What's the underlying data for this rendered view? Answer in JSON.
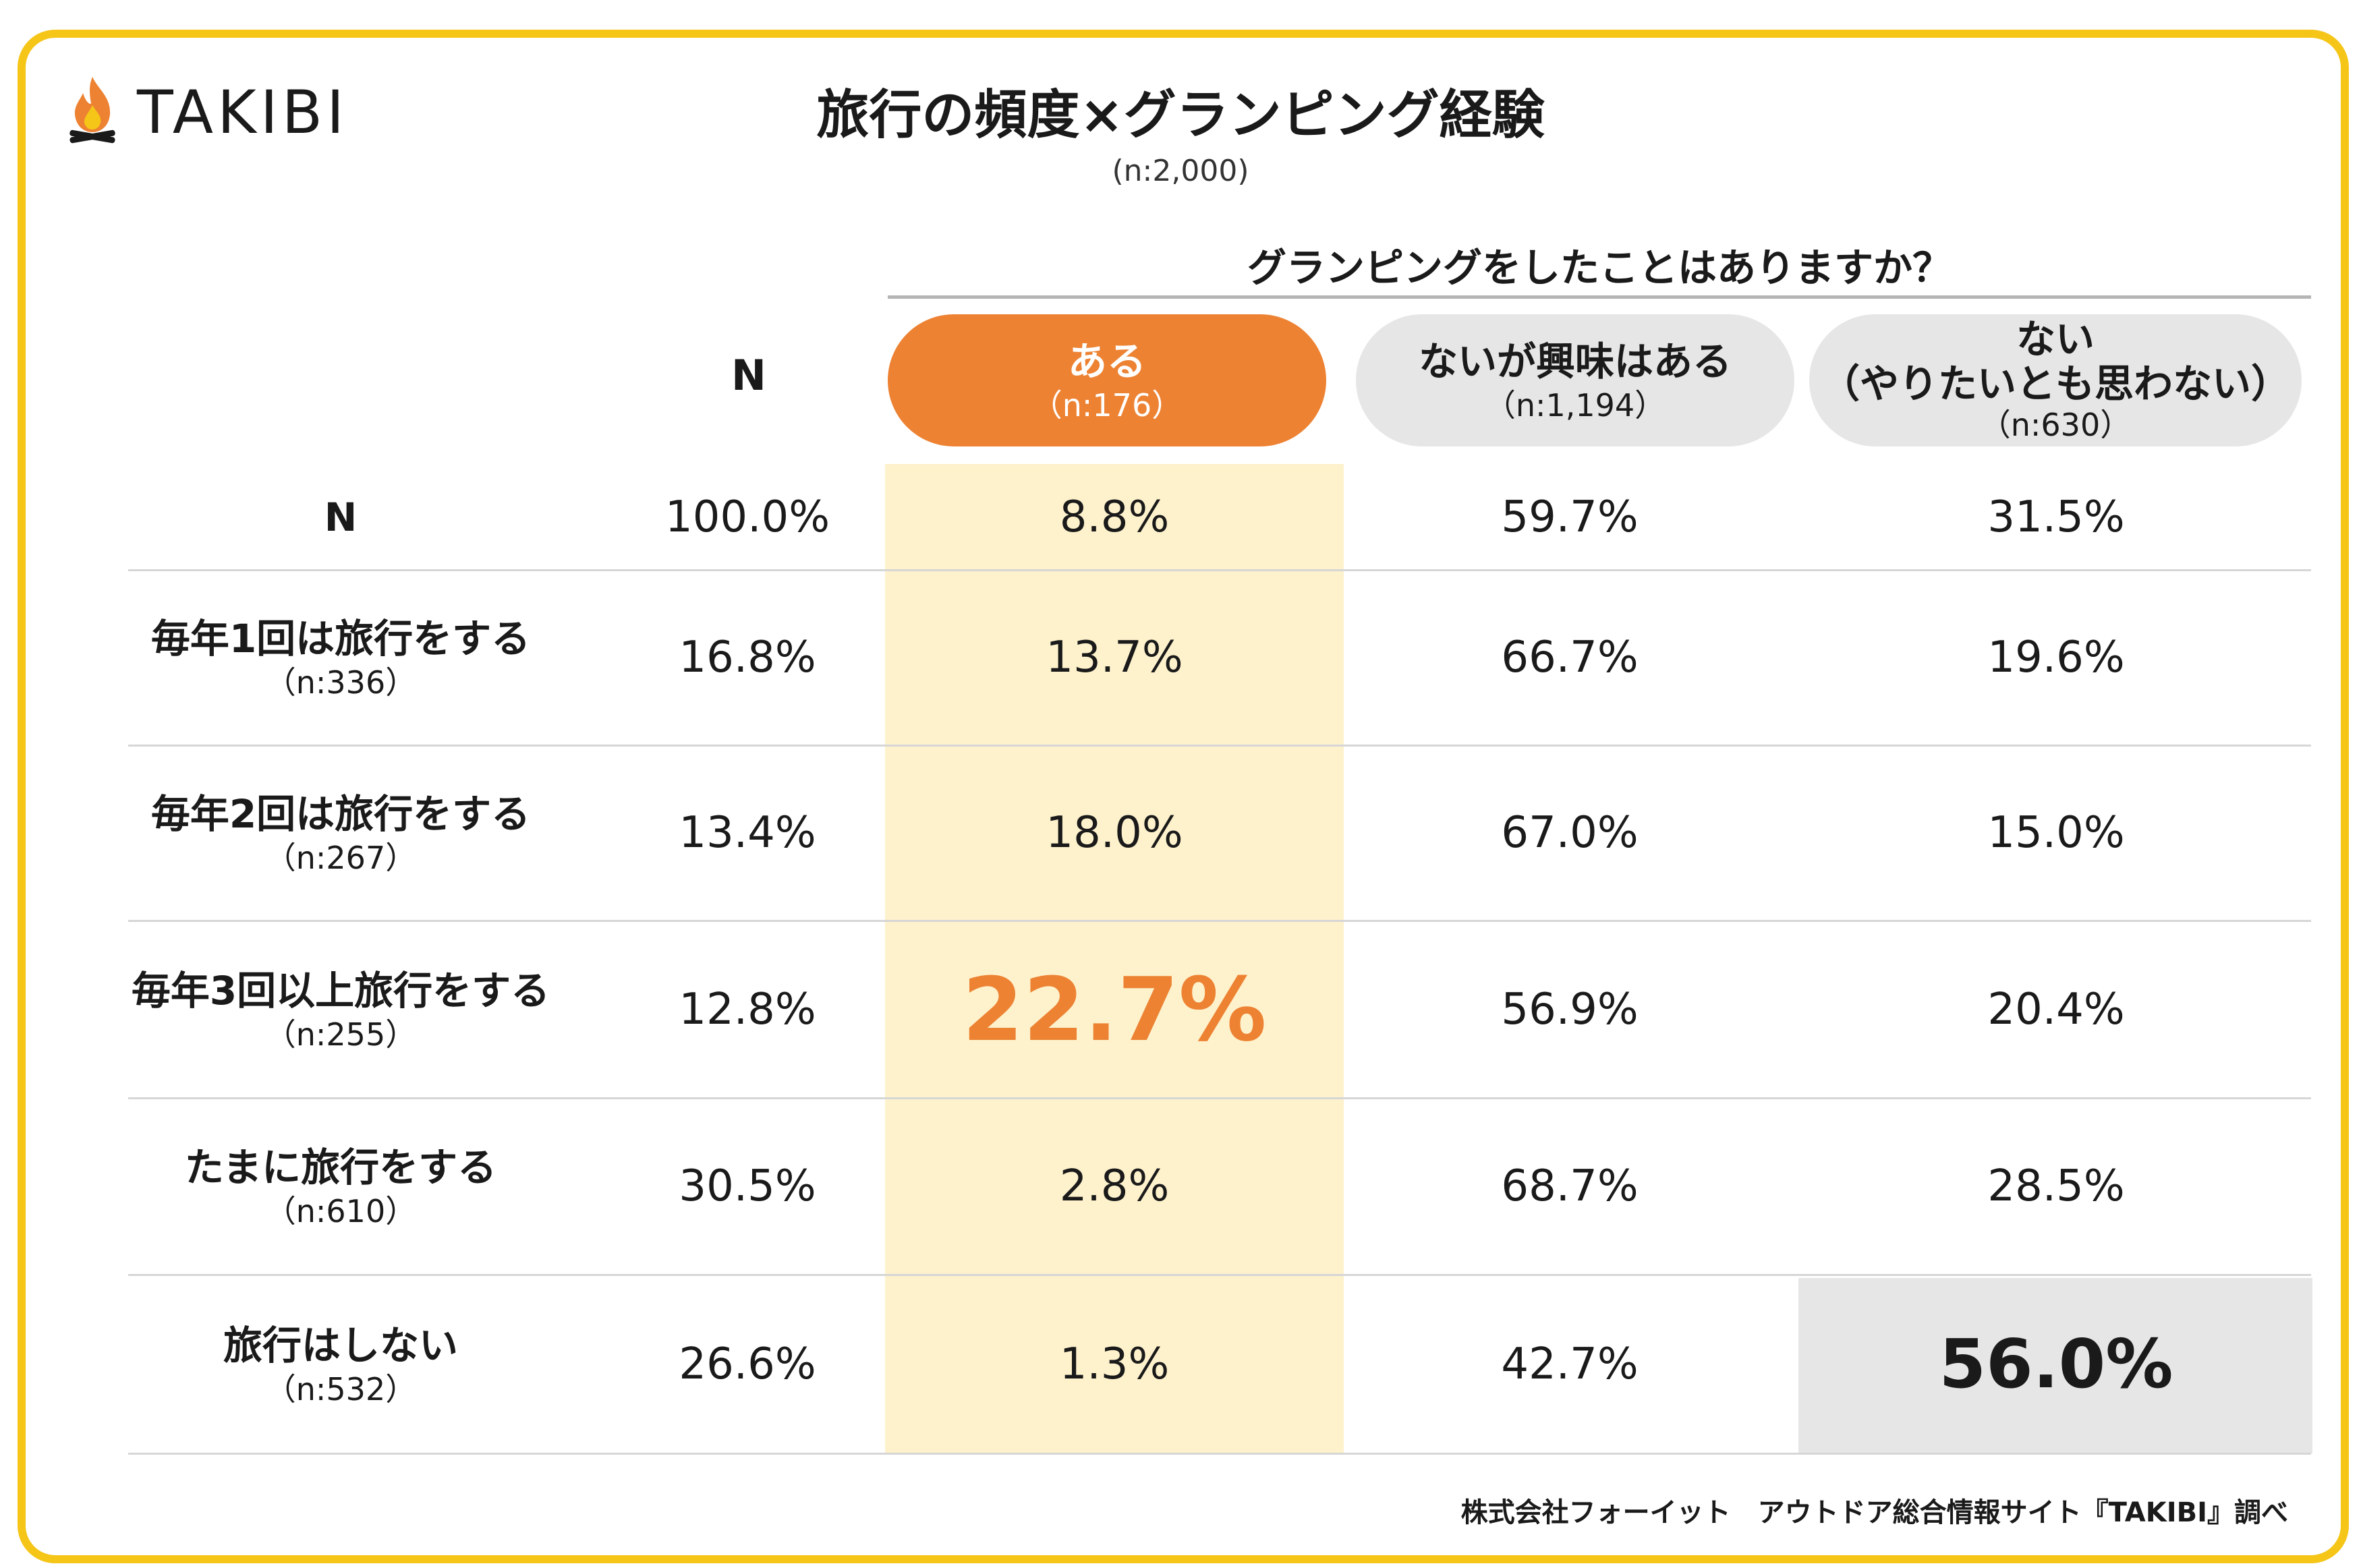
{
  "logo": {
    "text": "TAKIBI",
    "icon": "campfire-icon"
  },
  "header": {
    "title": "旅行の頻度×グランピング経験",
    "subtitle": "(n:2,000)"
  },
  "colors": {
    "accent": "#ed8233",
    "frame": "#f5c518",
    "highlight": "#fef2cc",
    "pill_gray": "#e6e6e6"
  },
  "chart_data": {
    "type": "table",
    "question": "グランピングをしたことはありますか？",
    "columns": [
      {
        "label": "N",
        "n": ""
      },
      {
        "label": "ある",
        "n": "（n:176）"
      },
      {
        "label": "ないが興味はある",
        "n": "（n:1,194）"
      },
      {
        "label": "ない\n（やりたいとも思わない）",
        "n": "（n:630）"
      }
    ],
    "rows": [
      {
        "label": "N",
        "n": "",
        "values": [
          "100.0%",
          "8.8%",
          "59.7%",
          "31.5%"
        ]
      },
      {
        "label": "毎年1回は旅行をする",
        "n": "（n:336）",
        "values": [
          "16.8%",
          "13.7%",
          "66.7%",
          "19.6%"
        ]
      },
      {
        "label": "毎年2回は旅行をする",
        "n": "（n:267）",
        "values": [
          "13.4%",
          "18.0%",
          "67.0%",
          "15.0%"
        ]
      },
      {
        "label": "毎年3回以上旅行をする",
        "n": "（n:255）",
        "values": [
          "12.8%",
          "22.7%",
          "56.9%",
          "20.4%"
        ]
      },
      {
        "label": "たまに旅行をする",
        "n": "（n:610）",
        "values": [
          "30.5%",
          "2.8%",
          "68.7%",
          "28.5%"
        ]
      },
      {
        "label": "旅行はしない",
        "n": "（n:532）",
        "values": [
          "26.6%",
          "1.3%",
          "42.7%",
          "56.0%"
        ]
      }
    ],
    "highlighted_column": "ある",
    "emphasized_cells": [
      {
        "row": "毎年3回以上旅行をする",
        "column": "ある",
        "value": "22.7%"
      },
      {
        "row": "旅行はしない",
        "column": "ない\n（やりたいとも思わない）",
        "value": "56.0%"
      }
    ]
  },
  "footer": {
    "source": "株式会社フォーイット　アウトドア総合情報サイト『TAKIBI』調べ"
  }
}
